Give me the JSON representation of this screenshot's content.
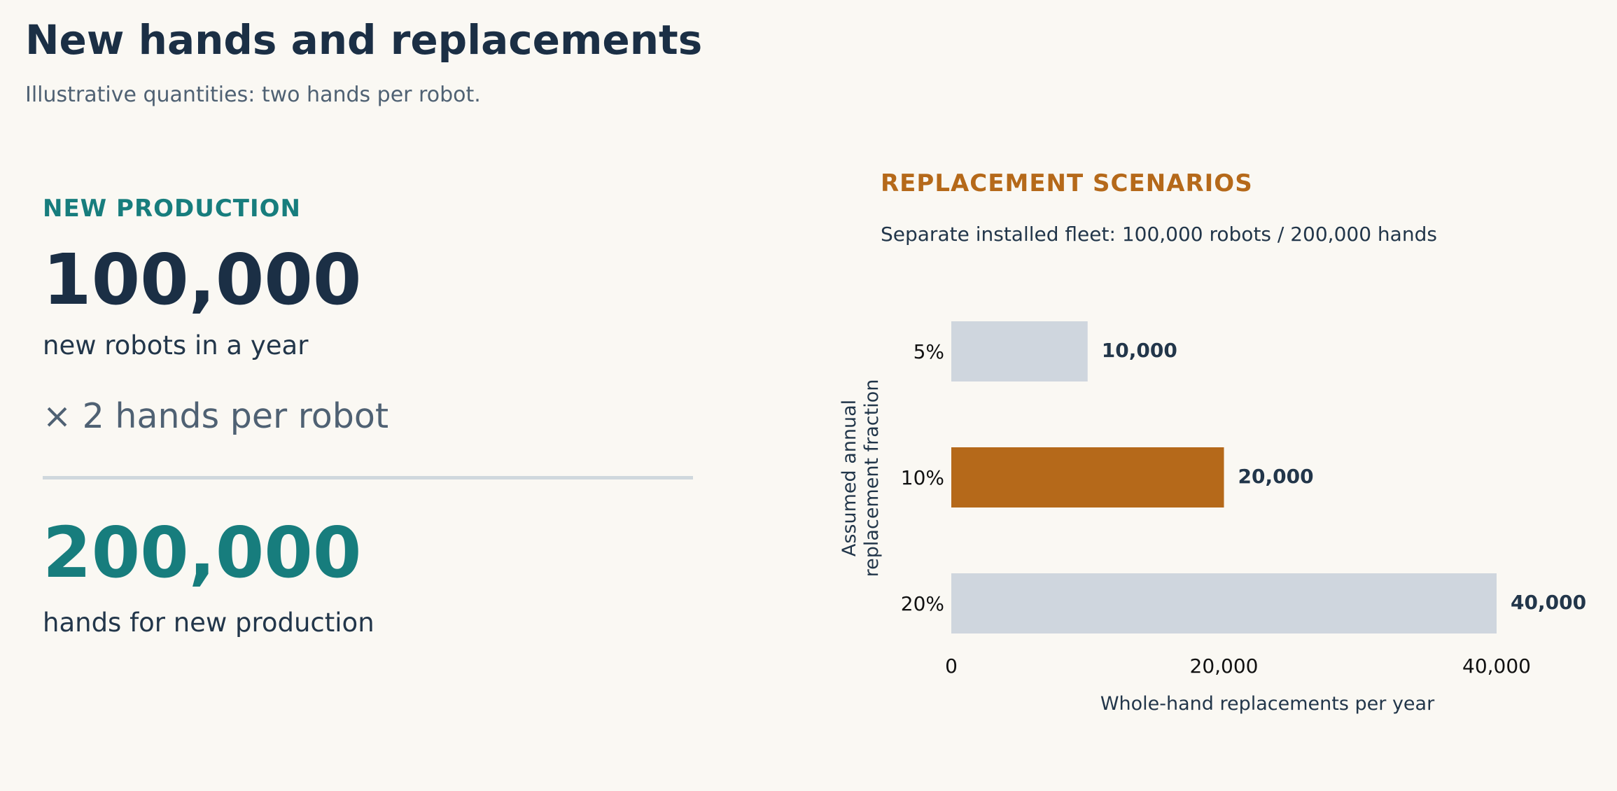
{
  "header": {
    "title": "New hands and replacements",
    "subtitle": "Illustrative quantities: two hands per robot."
  },
  "new_production": {
    "heading": "NEW PRODUCTION",
    "robots_value": "100,000",
    "robots_caption": "new robots in a year",
    "multiplier": "× 2 hands per robot",
    "hands_value": "200,000",
    "hands_caption": "hands for new production"
  },
  "replacement": {
    "heading": "REPLACEMENT SCENARIOS",
    "note": "Separate installed fleet: 100,000 robots / 200,000 hands"
  },
  "colors": {
    "title": "#1b2f45",
    "teal_accent": "#177d7d",
    "amber_accent": "#b5691a",
    "bar_default": "#cfd6de",
    "bar_highlight": "#b5691a"
  },
  "chart_data": {
    "type": "bar",
    "orientation": "horizontal",
    "categories": [
      "5%",
      "10%",
      "20%"
    ],
    "values": [
      10000,
      20000,
      40000
    ],
    "value_labels": [
      "10,000",
      "20,000",
      "40,000"
    ],
    "highlight": "10%",
    "xlabel": "Whole-hand replacements per year",
    "ylabel": "Assumed annual replacement fraction",
    "ylabel_lines": [
      "Assumed annual",
      "replacement fraction"
    ],
    "xticks": [
      0,
      20000,
      40000
    ],
    "xtick_labels": [
      "0",
      "20,000",
      "40,000"
    ],
    "xlim": [
      0,
      40000
    ],
    "grid": false,
    "legend": "none"
  }
}
